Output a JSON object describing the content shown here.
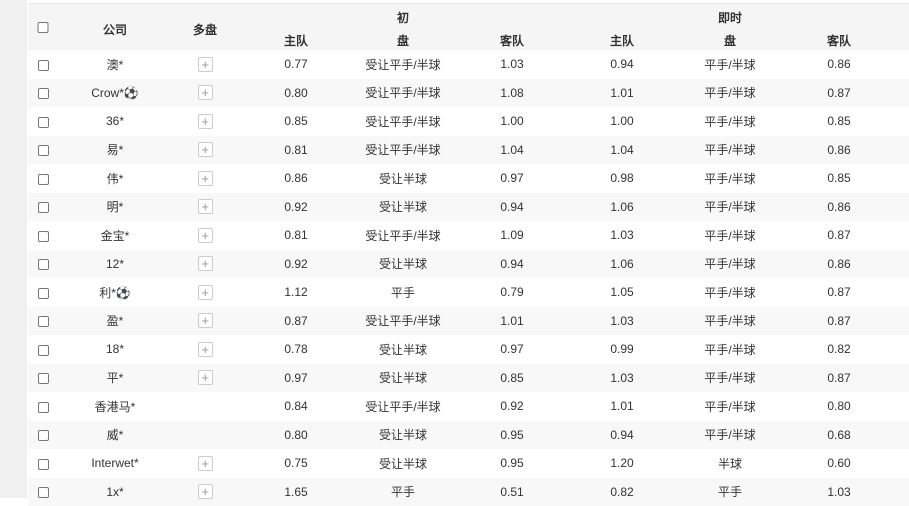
{
  "header": {
    "company": "公司",
    "multi": "多盘",
    "initial": "初",
    "live": "即时",
    "home": "主队",
    "line": "盘",
    "away": "客队"
  },
  "rows": [
    {
      "company": "澳*",
      "multi": true,
      "ih": "0.77",
      "il": "受让平手/半球",
      "ia": "1.03",
      "lh": "0.94",
      "ll": "平手/半球",
      "la": "0.86"
    },
    {
      "company": "Crow*⚽",
      "multi": true,
      "ih": "0.80",
      "il": "受让平手/半球",
      "ia": "1.08",
      "lh": "1.01",
      "ll": "平手/半球",
      "la": "0.87"
    },
    {
      "company": "36*",
      "multi": true,
      "ih": "0.85",
      "il": "受让平手/半球",
      "ia": "1.00",
      "lh": "1.00",
      "ll": "平手/半球",
      "la": "0.85"
    },
    {
      "company": "易*",
      "multi": true,
      "ih": "0.81",
      "il": "受让平手/半球",
      "ia": "1.04",
      "lh": "1.04",
      "ll": "平手/半球",
      "la": "0.86"
    },
    {
      "company": "伟*",
      "multi": true,
      "ih": "0.86",
      "il": "受让半球",
      "ia": "0.97",
      "lh": "0.98",
      "ll": "平手/半球",
      "la": "0.85"
    },
    {
      "company": "明*",
      "multi": true,
      "ih": "0.92",
      "il": "受让半球",
      "ia": "0.94",
      "lh": "1.06",
      "ll": "平手/半球",
      "la": "0.86"
    },
    {
      "company": "金宝*",
      "multi": true,
      "ih": "0.81",
      "il": "受让平手/半球",
      "ia": "1.09",
      "lh": "1.03",
      "ll": "平手/半球",
      "la": "0.87"
    },
    {
      "company": "12*",
      "multi": true,
      "ih": "0.92",
      "il": "受让半球",
      "ia": "0.94",
      "lh": "1.06",
      "ll": "平手/半球",
      "la": "0.86"
    },
    {
      "company": "利*⚽",
      "multi": true,
      "ih": "1.12",
      "il": "平手",
      "ia": "0.79",
      "lh": "1.05",
      "ll": "平手/半球",
      "la": "0.87"
    },
    {
      "company": "盈*",
      "multi": true,
      "ih": "0.87",
      "il": "受让平手/半球",
      "ia": "1.01",
      "lh": "1.03",
      "ll": "平手/半球",
      "la": "0.87"
    },
    {
      "company": "18*",
      "multi": true,
      "ih": "0.78",
      "il": "受让半球",
      "ia": "0.97",
      "lh": "0.99",
      "ll": "平手/半球",
      "la": "0.82"
    },
    {
      "company": "平*",
      "multi": true,
      "ih": "0.97",
      "il": "受让半球",
      "ia": "0.85",
      "lh": "1.03",
      "ll": "平手/半球",
      "la": "0.87"
    },
    {
      "company": "香港马*",
      "multi": false,
      "ih": "0.84",
      "il": "受让平手/半球",
      "ia": "0.92",
      "lh": "1.01",
      "ll": "平手/半球",
      "la": "0.80"
    },
    {
      "company": "威*",
      "multi": false,
      "ih": "0.80",
      "il": "受让半球",
      "ia": "0.95",
      "lh": "0.94",
      "ll": "平手/半球",
      "la": "0.68"
    },
    {
      "company": "Interwet*",
      "multi": true,
      "ih": "0.75",
      "il": "受让半球",
      "ia": "0.95",
      "lh": "1.20",
      "ll": "半球",
      "la": "0.60"
    },
    {
      "company": "1x*",
      "multi": true,
      "ih": "1.65",
      "il": "平手",
      "ia": "0.51",
      "lh": "0.82",
      "ll": "平手",
      "la": "1.03"
    }
  ]
}
